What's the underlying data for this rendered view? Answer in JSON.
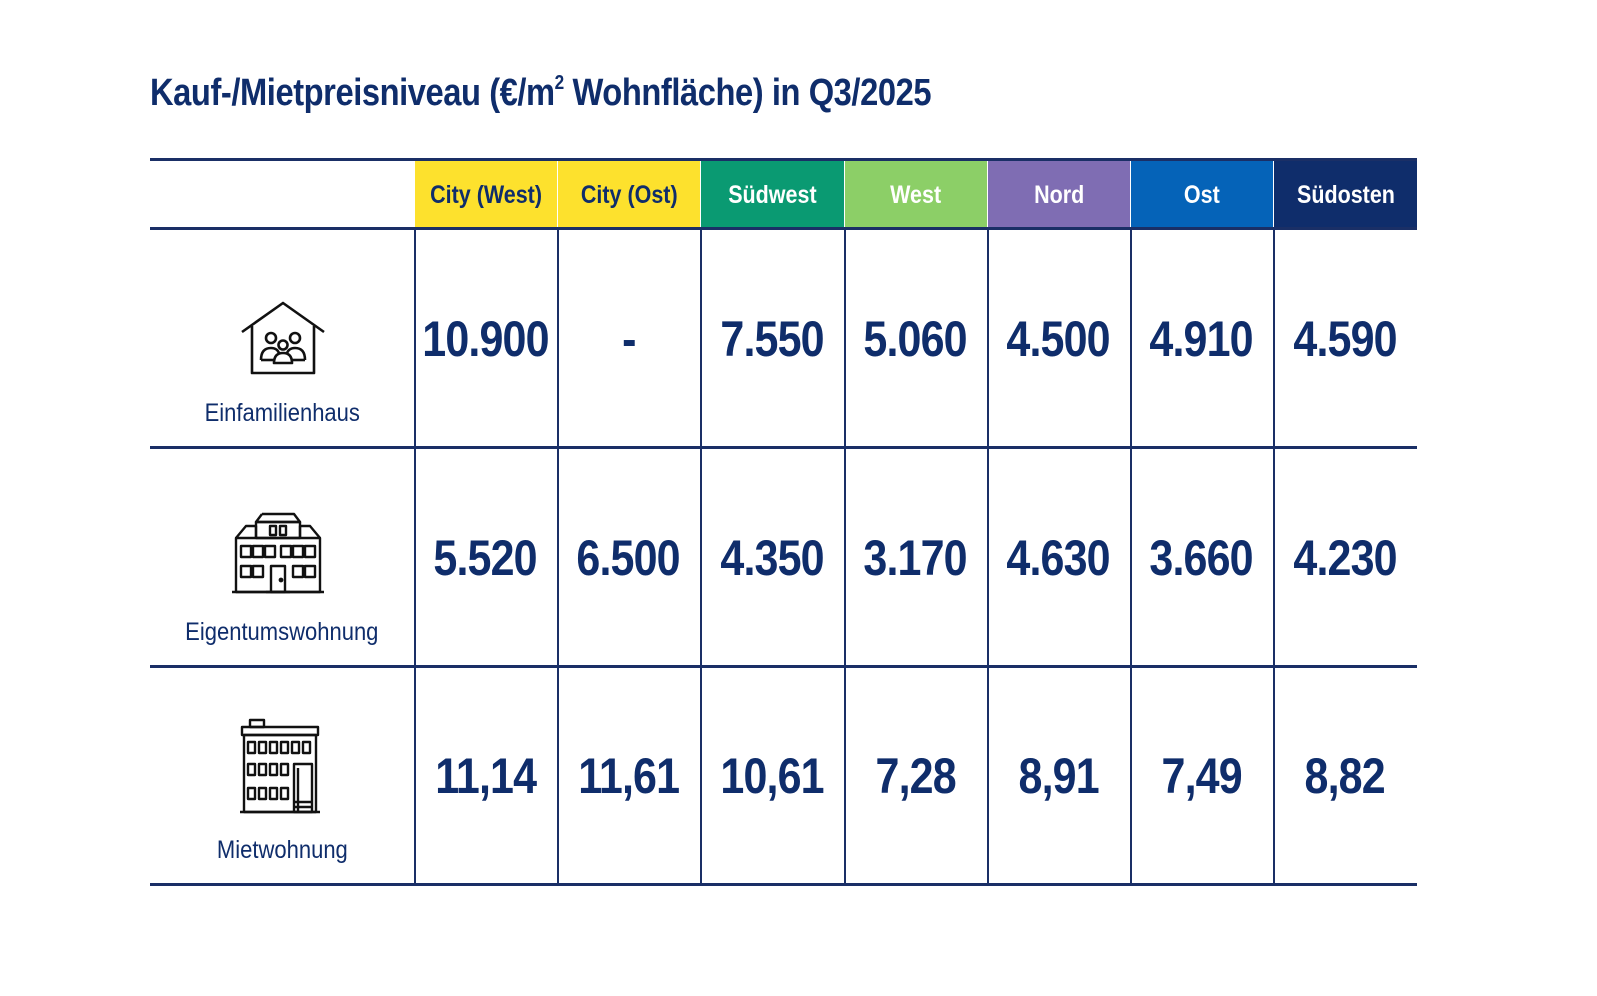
{
  "title": {
    "prefix": "Kauf-/Mietpreisniveau (€/m",
    "sup": "2",
    "suffix": " Wohnfläche) in Q3/2025"
  },
  "columns": [
    {
      "label": "City (West)",
      "bg": "#fde12d",
      "fg": "#0f2d6b"
    },
    {
      "label": "City (Ost)",
      "bg": "#fde12d",
      "fg": "#0f2d6b"
    },
    {
      "label": "Südwest",
      "bg": "#0a9a72",
      "fg": "#ffffff"
    },
    {
      "label": "West",
      "bg": "#8ccf67",
      "fg": "#ffffff"
    },
    {
      "label": "Nord",
      "bg": "#7f6db3",
      "fg": "#ffffff"
    },
    {
      "label": "Ost",
      "bg": "#0563b8",
      "fg": "#ffffff"
    },
    {
      "label": "Südosten",
      "bg": "#0f2d6b",
      "fg": "#ffffff"
    }
  ],
  "rows": [
    {
      "label": "Einfamilienhaus",
      "icon": "house-family-icon",
      "values": [
        "10.900",
        "-",
        "7.550",
        "5.060",
        "4.500",
        "4.910",
        "4.590"
      ]
    },
    {
      "label": "Eigentumswohnung",
      "icon": "apartment-building-icon",
      "values": [
        "5.520",
        "6.500",
        "4.350",
        "3.170",
        "4.630",
        "3.660",
        "4.230"
      ]
    },
    {
      "label": "Mietwohnung",
      "icon": "rental-building-icon",
      "values": [
        "11,14",
        "11,61",
        "10,61",
        "7,28",
        "8,91",
        "7,49",
        "8,82"
      ]
    }
  ]
}
